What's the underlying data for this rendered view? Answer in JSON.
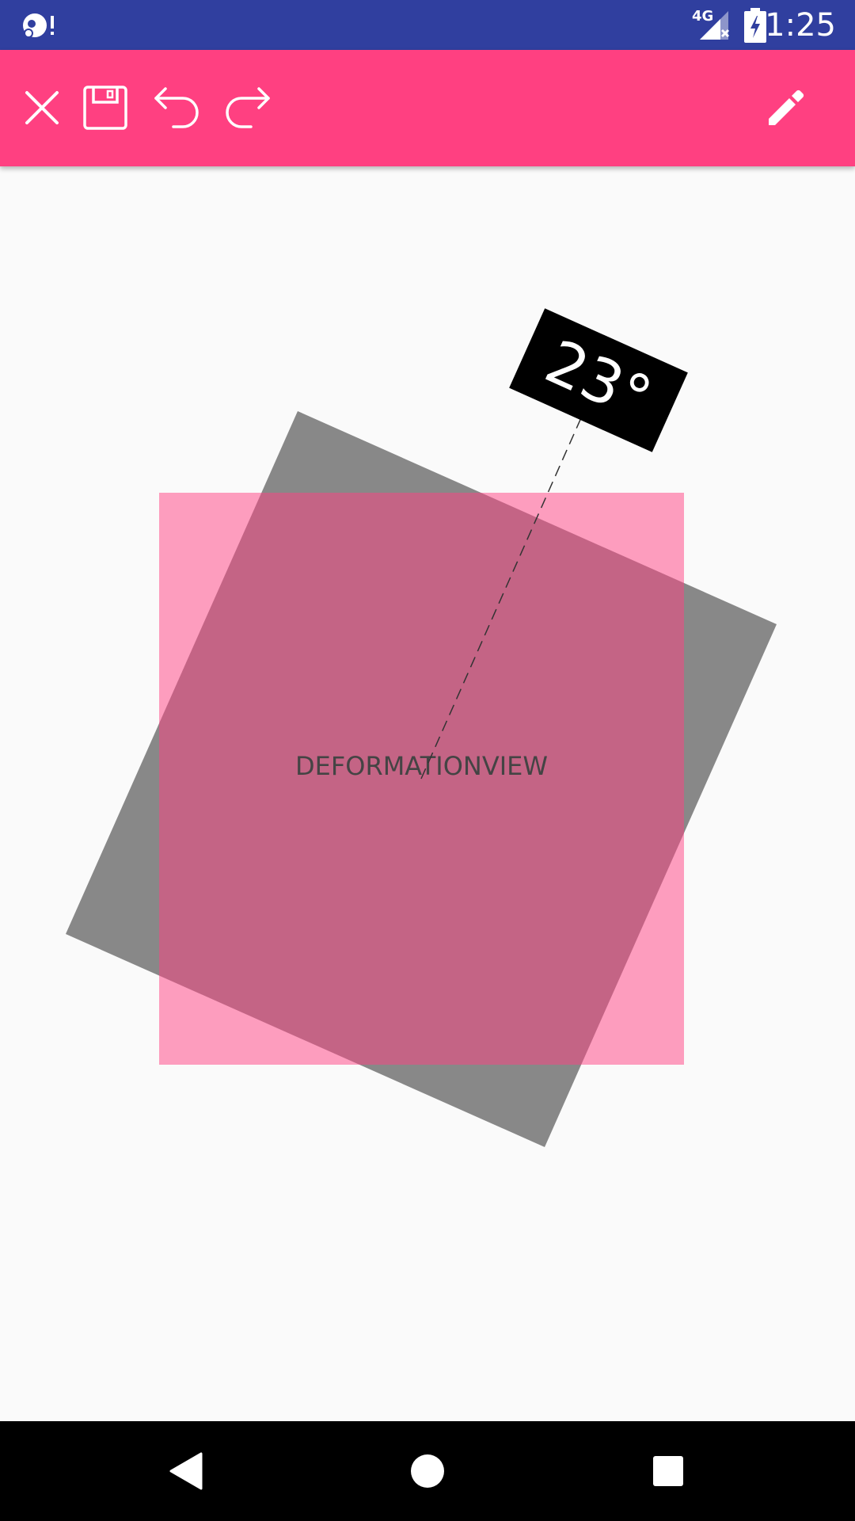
{
  "status_bar": {
    "time": "1:25",
    "network": "4G",
    "background_color": "#303f9f"
  },
  "toolbar": {
    "background_color": "#ff4081",
    "actions": [
      {
        "icon": "close-icon"
      },
      {
        "icon": "save-icon"
      },
      {
        "icon": "undo-icon"
      },
      {
        "icon": "redo-icon"
      },
      {
        "icon": "edit-icon"
      }
    ]
  },
  "canvas": {
    "view_label": "DEFORMATIONVIEW",
    "rotation_label": "23°",
    "view_color": "#ff4081",
    "shadow_color": "#888888"
  },
  "nav_bar": {
    "buttons": [
      {
        "icon": "back-icon"
      },
      {
        "icon": "home-icon"
      },
      {
        "icon": "recents-icon"
      }
    ]
  }
}
